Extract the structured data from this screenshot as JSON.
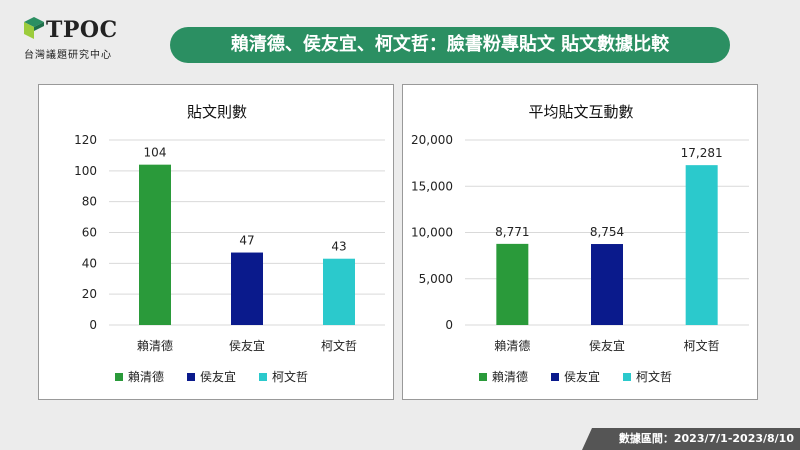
{
  "logo": {
    "text": "TPOC",
    "subtitle": "台灣議題研究中心"
  },
  "header": {
    "title": "賴清德、侯友宜、柯文哲：臉書粉專貼文 貼文數據比較"
  },
  "footer": {
    "text": "數據區間：2023/7/1-2023/8/10"
  },
  "colors": {
    "banner": "#2b8f62",
    "lai": "#2a9a3a",
    "hou": "#0a1a8c",
    "ko": "#2bc9cc"
  },
  "chart_data": [
    {
      "type": "bar",
      "title": "貼文則數",
      "categories": [
        "賴清德",
        "侯友宜",
        "柯文哲"
      ],
      "values": [
        104,
        47,
        43
      ],
      "value_labels": [
        "104",
        "47",
        "43"
      ],
      "colors": [
        "#2a9a3a",
        "#0a1a8c",
        "#2bc9cc"
      ],
      "ylim": [
        0,
        120
      ],
      "yticks": [
        "0",
        "20",
        "40",
        "60",
        "80",
        "100",
        "120"
      ],
      "grid": true,
      "legend": [
        "賴清德",
        "侯友宜",
        "柯文哲"
      ],
      "legend_position": "bottom"
    },
    {
      "type": "bar",
      "title": "平均貼文互動數",
      "categories": [
        "賴清德",
        "侯友宜",
        "柯文哲"
      ],
      "values": [
        8771,
        8754,
        17281
      ],
      "value_labels": [
        "8,771",
        "8,754",
        "17,281"
      ],
      "colors": [
        "#2a9a3a",
        "#0a1a8c",
        "#2bc9cc"
      ],
      "ylim": [
        0,
        20000
      ],
      "yticks": [
        "0",
        "5,000",
        "10,000",
        "15,000",
        "20,000"
      ],
      "grid": true,
      "legend": [
        "賴清德",
        "侯友宜",
        "柯文哲"
      ],
      "legend_position": "bottom"
    }
  ]
}
